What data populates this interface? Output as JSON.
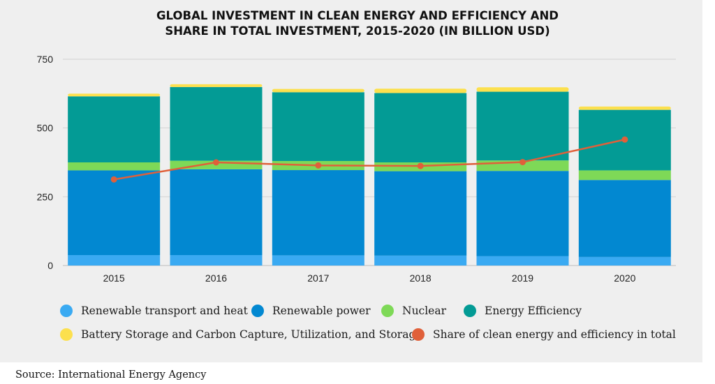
{
  "chart_data": {
    "type": "bar",
    "subtype": "stacked bar with line overlay",
    "title_lines": [
      "GLOBAL INVESTMENT IN CLEAN ENERGY AND EFFICIENCY AND",
      "SHARE IN TOTAL INVESTMENT, 2015-2020 (IN BILLION USD)"
    ],
    "categories": [
      "2015",
      "2016",
      "2017",
      "2018",
      "2019",
      "2020"
    ],
    "y_ticks": [
      "0",
      "250",
      "500",
      "750"
    ],
    "ylim": [
      0,
      750
    ],
    "grid": true,
    "legend_position": "bottom",
    "series": [
      {
        "name": "Renewable transport and heat",
        "color": "#3aaaf2",
        "values": [
          38,
          38,
          37,
          36,
          34,
          31
        ]
      },
      {
        "name": "Renewable power",
        "color": "#0288d1",
        "values": [
          308,
          312,
          310,
          307,
          310,
          280
        ]
      },
      {
        "name": "Nuclear",
        "color": "#7ed957",
        "values": [
          29,
          31,
          33,
          32,
          38,
          35
        ]
      },
      {
        "name": "Energy Efficiency",
        "color": "#039b95",
        "values": [
          240,
          268,
          250,
          252,
          250,
          220
        ]
      },
      {
        "name": "Battery Storage and Carbon Capture, Utilization, and Storage",
        "color": "#fce04e",
        "values": [
          10,
          10,
          12,
          16,
          16,
          12
        ]
      }
    ],
    "line_series": {
      "name": "Share of clean energy and efficiency in total",
      "color": "#e0603a",
      "values": [
        313,
        375,
        364,
        362,
        376,
        458
      ]
    }
  },
  "legend_rows": [
    [
      "Renewable transport and heat",
      "Renewable power",
      "Nuclear",
      "Energy Efficiency"
    ],
    [
      "Battery Storage and Carbon Capture, Utilization, and Storage",
      "Share of clean energy and efficiency in total"
    ]
  ],
  "source": "Source: International Energy Agency"
}
